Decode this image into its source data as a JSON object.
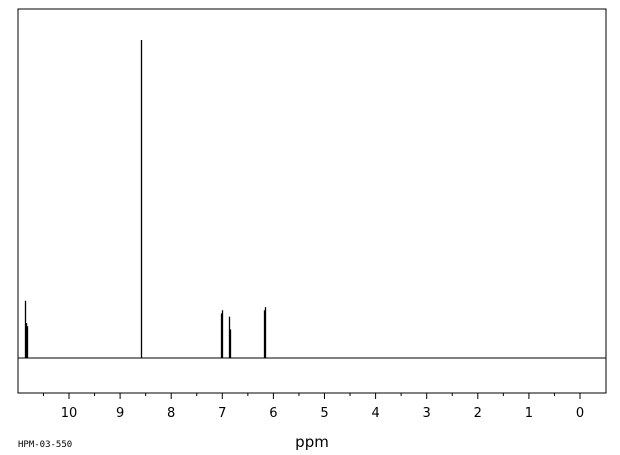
{
  "chart_data": {
    "type": "line",
    "title": "",
    "xlabel": "ppm",
    "ylabel": "",
    "xlim": [
      10.95,
      -0.5
    ],
    "ylim": [
      0,
      1
    ],
    "x_reversed": true,
    "grid": false,
    "ticks": {
      "major": [
        10,
        9,
        8,
        7,
        6,
        5,
        4,
        3,
        2,
        1,
        0
      ],
      "major_labels": [
        "10",
        "9",
        "8",
        "7",
        "6",
        "5",
        "4",
        "3",
        "2",
        "1",
        "0"
      ],
      "minor": [
        10.5,
        9.5,
        8.5,
        7.5,
        6.5,
        5.5,
        4.5,
        3.5,
        2.5,
        1.5,
        0.5
      ]
    },
    "peaks": [
      {
        "ppm": 10.86,
        "intensity": 0.18
      },
      {
        "ppm": 10.84,
        "intensity": 0.11
      },
      {
        "ppm": 10.82,
        "intensity": 0.1
      },
      {
        "ppm": 8.59,
        "intensity": 1.0
      },
      {
        "ppm": 7.03,
        "intensity": 0.14
      },
      {
        "ppm": 7.0,
        "intensity": 0.15
      },
      {
        "ppm": 6.87,
        "intensity": 0.13
      },
      {
        "ppm": 6.84,
        "intensity": 0.09
      },
      {
        "ppm": 6.19,
        "intensity": 0.15
      },
      {
        "ppm": 6.16,
        "intensity": 0.16
      }
    ]
  },
  "footer": {
    "code": "HPM-03-550"
  }
}
